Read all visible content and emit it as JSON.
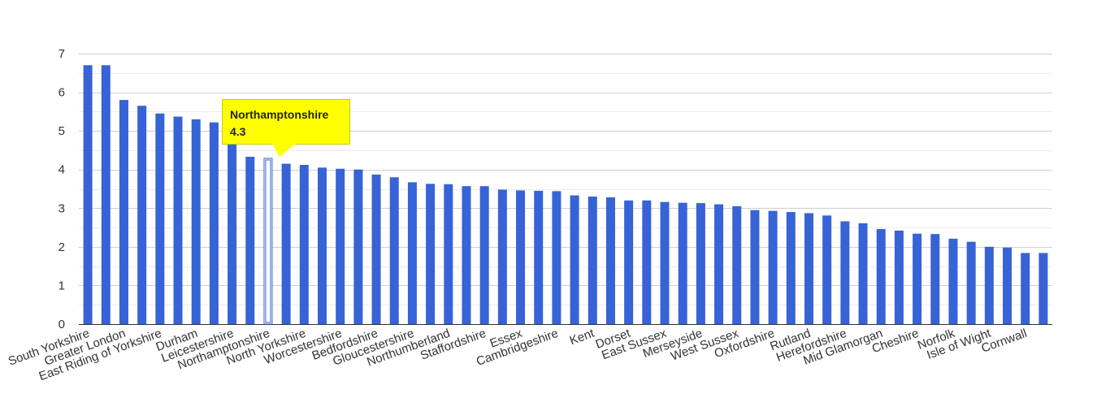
{
  "colors": {
    "bar": "#3663d6",
    "highlight_fill": "#ffffff",
    "highlight_stroke": "#3663d6",
    "tooltip": "#ffff00",
    "grid": "#d9d9d9"
  },
  "tooltip": {
    "name": "Northamptonshire",
    "value": "4.3"
  },
  "chart_data": {
    "type": "bar",
    "title": "",
    "xlabel": "",
    "ylabel": "",
    "ylim": [
      0,
      7
    ],
    "yticks": [
      0,
      1,
      2,
      3,
      4,
      5,
      6,
      7
    ],
    "grid": true,
    "highlight": "Northamptonshire",
    "categories": [
      "South Yorkshire",
      "",
      "Greater London",
      "",
      "East Riding of Yorkshire",
      "",
      "Durham",
      "",
      "Leicestershire",
      "",
      "Northamptonshire",
      "",
      "North Yorkshire",
      "",
      "Worcestershire",
      "",
      "Bedfordshire",
      "",
      "Gloucestershire",
      "",
      "Northumberland",
      "",
      "Staffordshire",
      "",
      "Essex",
      "",
      "Cambridgeshire",
      "",
      "Kent",
      "",
      "Dorset",
      "",
      "East Sussex",
      "",
      "Merseyside",
      "",
      "West Sussex",
      "",
      "Oxfordshire",
      "",
      "Rutland",
      "",
      "Herefordshire",
      "",
      "Mid Glamorgan",
      "",
      "Cheshire",
      "",
      "Norfolk",
      "",
      "Isle of Wight",
      "",
      "Cornwall",
      ""
    ],
    "values": [
      6.7,
      6.7,
      5.8,
      5.65,
      5.45,
      5.37,
      5.3,
      5.22,
      4.65,
      4.33,
      4.3,
      4.15,
      4.12,
      4.05,
      4.02,
      4.0,
      3.87,
      3.8,
      3.67,
      3.63,
      3.62,
      3.57,
      3.57,
      3.48,
      3.46,
      3.45,
      3.44,
      3.33,
      3.3,
      3.28,
      3.2,
      3.2,
      3.16,
      3.14,
      3.13,
      3.1,
      3.05,
      2.95,
      2.93,
      2.9,
      2.87,
      2.81,
      2.66,
      2.61,
      2.46,
      2.42,
      2.34,
      2.33,
      2.21,
      2.13,
      2.0,
      1.98,
      1.84,
      1.84
    ]
  }
}
